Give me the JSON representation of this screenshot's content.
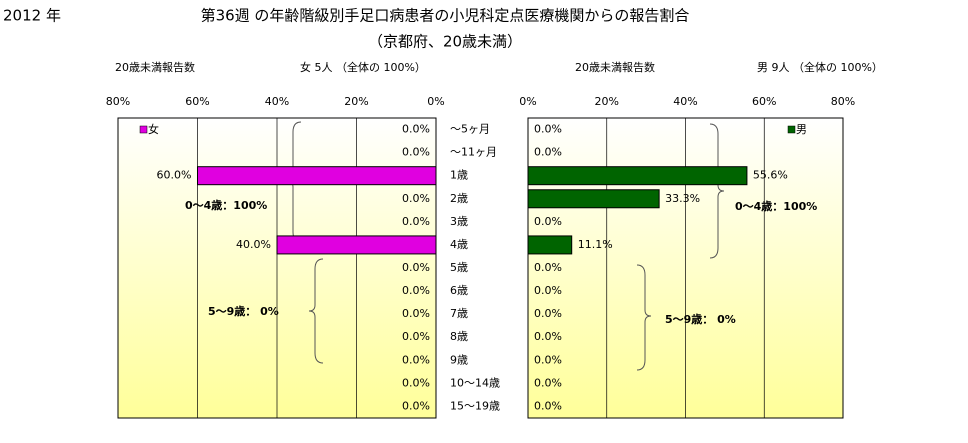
{
  "chart_data": {
    "type": "bar",
    "year": "2012 年",
    "title": "第36週 の年齢階級別手足口病患者の小児科定点医療機関からの報告割合",
    "subtitle": "（京都府、20歳未満）",
    "categories": [
      "〜5ヶ月",
      "〜11ヶ月",
      "1歳",
      "2歳",
      "3歳",
      "4歳",
      "5歳",
      "6歳",
      "7歳",
      "8歳",
      "9歳",
      "10〜14歳",
      "15〜19歳"
    ],
    "xlim": [
      0,
      80
    ],
    "xticks": [
      {
        "value": 80,
        "label": "80%"
      },
      {
        "value": 60,
        "label": "60%"
      },
      {
        "value": 40,
        "label": "40%"
      },
      {
        "value": 20,
        "label": "20%"
      },
      {
        "value": 0,
        "label": "0%"
      }
    ],
    "grid": true,
    "series": [
      {
        "name": "女",
        "color": "#e000e0",
        "header": "20歳未満報告数",
        "summary": "女  5人 （全体の  100%）",
        "legend": "upper left",
        "values": [
          0,
          0,
          60,
          0,
          0,
          40,
          0,
          0,
          0,
          0,
          0,
          0,
          0
        ],
        "value_labels": [
          "0.0%",
          "0.0%",
          "60.0%",
          "0.0%",
          "0.0%",
          "40.0%",
          "0.0%",
          "0.0%",
          "0.0%",
          "0.0%",
          "0.0%",
          "0.0%",
          "0.0%"
        ],
        "annotations": [
          "0〜4歳：100%",
          "5〜9歳： 0%"
        ]
      },
      {
        "name": "男",
        "color": "#006400",
        "header": "20歳未満報告数",
        "summary": "男  9人 （全体の  100%）",
        "legend": "upper right",
        "values": [
          0,
          0,
          55.6,
          33.3,
          0,
          11.1,
          0,
          0,
          0,
          0,
          0,
          0,
          0
        ],
        "value_labels": [
          "0.0%",
          "0.0%",
          "55.6%",
          "33.3%",
          "0.0%",
          "11.1%",
          "0.0%",
          "0.0%",
          "0.0%",
          "0.0%",
          "0.0%",
          "0.0%",
          "0.0%"
        ],
        "annotations": [
          "0〜4歳：100%",
          "5〜9歳： 0%"
        ]
      }
    ]
  }
}
